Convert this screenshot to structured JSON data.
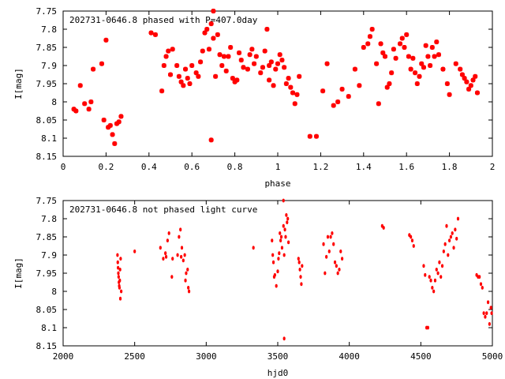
{
  "chart_data": [
    {
      "type": "scatter",
      "title": "202731-0646.8 phased with P=407.0day",
      "xlabel": "phase",
      "ylabel": "I[mag]",
      "xlim": [
        0,
        2
      ],
      "ylim": [
        8.15,
        7.75
      ],
      "y_inverted": true,
      "grid": false,
      "marker_color": "#ff0000",
      "x_ticks": [
        "0",
        "0.2",
        "0.4",
        "0.6",
        "0.8",
        "1",
        "1.2",
        "1.4",
        "1.6",
        "1.8",
        "2"
      ],
      "y_ticks": [
        "7.75",
        "7.8",
        "7.85",
        "7.9",
        "7.95",
        "8",
        "8.05",
        "8.1",
        "8.15"
      ],
      "points": [
        [
          0.05,
          8.02
        ],
        [
          0.06,
          8.025
        ],
        [
          0.08,
          7.955
        ],
        [
          0.1,
          8.005
        ],
        [
          0.12,
          8.02
        ],
        [
          0.13,
          8.0
        ],
        [
          0.14,
          7.91
        ],
        [
          0.18,
          7.895
        ],
        [
          0.19,
          8.05
        ],
        [
          0.2,
          7.83
        ],
        [
          0.21,
          8.07
        ],
        [
          0.22,
          8.065
        ],
        [
          0.23,
          8.09
        ],
        [
          0.24,
          8.115
        ],
        [
          0.25,
          8.06
        ],
        [
          0.26,
          8.055
        ],
        [
          0.27,
          8.04
        ],
        [
          0.41,
          7.81
        ],
        [
          0.43,
          7.815
        ],
        [
          0.46,
          7.97
        ],
        [
          0.47,
          7.9
        ],
        [
          0.48,
          7.875
        ],
        [
          0.49,
          7.86
        ],
        [
          0.5,
          7.925
        ],
        [
          0.51,
          7.855
        ],
        [
          0.53,
          7.9
        ],
        [
          0.54,
          7.93
        ],
        [
          0.55,
          7.945
        ],
        [
          0.56,
          7.955
        ],
        [
          0.57,
          7.91
        ],
        [
          0.58,
          7.935
        ],
        [
          0.59,
          7.95
        ],
        [
          0.6,
          7.9
        ],
        [
          0.62,
          7.92
        ],
        [
          0.63,
          7.93
        ],
        [
          0.64,
          7.89
        ],
        [
          0.65,
          7.86
        ],
        [
          0.66,
          7.81
        ],
        [
          0.67,
          7.8
        ],
        [
          0.68,
          7.855
        ],
        [
          0.69,
          7.785
        ],
        [
          0.7,
          7.75
        ],
        [
          0.7,
          7.825
        ],
        [
          0.71,
          7.93
        ],
        [
          0.72,
          7.815
        ],
        [
          0.73,
          7.87
        ],
        [
          0.74,
          7.9
        ],
        [
          0.75,
          7.875
        ],
        [
          0.76,
          7.915
        ],
        [
          0.77,
          7.875
        ],
        [
          0.78,
          7.85
        ],
        [
          0.79,
          7.935
        ],
        [
          0.8,
          7.945
        ],
        [
          0.81,
          7.94
        ],
        [
          0.82,
          7.865
        ],
        [
          0.83,
          7.885
        ],
        [
          0.84,
          7.905
        ],
        [
          0.86,
          7.91
        ],
        [
          0.87,
          7.87
        ],
        [
          0.88,
          7.855
        ],
        [
          0.89,
          7.895
        ],
        [
          0.9,
          7.875
        ],
        [
          0.92,
          7.92
        ],
        [
          0.93,
          7.905
        ],
        [
          0.94,
          7.86
        ],
        [
          0.95,
          7.8
        ],
        [
          0.96,
          7.94
        ],
        [
          0.96,
          7.9
        ],
        [
          0.97,
          7.89
        ],
        [
          0.98,
          7.955
        ],
        [
          0.99,
          7.91
        ],
        [
          1.0,
          7.895
        ],
        [
          1.01,
          7.87
        ],
        [
          1.02,
          7.885
        ],
        [
          1.03,
          7.905
        ],
        [
          1.04,
          7.95
        ],
        [
          1.05,
          7.935
        ],
        [
          1.06,
          7.96
        ],
        [
          1.07,
          7.975
        ],
        [
          1.08,
          8.005
        ],
        [
          1.09,
          7.98
        ],
        [
          1.1,
          7.93
        ],
        [
          1.15,
          8.095
        ],
        [
          1.18,
          8.095
        ],
        [
          0.69,
          8.105
        ],
        [
          1.21,
          7.97
        ],
        [
          1.23,
          7.895
        ],
        [
          1.26,
          8.01
        ],
        [
          1.28,
          8.0
        ],
        [
          1.3,
          7.965
        ],
        [
          1.33,
          7.985
        ],
        [
          1.36,
          7.91
        ],
        [
          1.38,
          7.955
        ],
        [
          1.4,
          7.85
        ],
        [
          1.42,
          7.84
        ],
        [
          1.43,
          7.82
        ],
        [
          1.44,
          7.8
        ],
        [
          1.46,
          7.895
        ],
        [
          1.47,
          8.005
        ],
        [
          1.48,
          7.84
        ],
        [
          1.49,
          7.865
        ],
        [
          1.5,
          7.875
        ],
        [
          1.51,
          7.96
        ],
        [
          1.52,
          7.95
        ],
        [
          1.53,
          7.92
        ],
        [
          1.54,
          7.855
        ],
        [
          1.55,
          7.88
        ],
        [
          1.57,
          7.84
        ],
        [
          1.58,
          7.825
        ],
        [
          1.59,
          7.85
        ],
        [
          1.6,
          7.815
        ],
        [
          1.61,
          7.875
        ],
        [
          1.62,
          7.91
        ],
        [
          1.63,
          7.88
        ],
        [
          1.64,
          7.92
        ],
        [
          1.65,
          7.95
        ],
        [
          1.66,
          7.93
        ],
        [
          1.67,
          7.895
        ],
        [
          1.68,
          7.905
        ],
        [
          1.69,
          7.845
        ],
        [
          1.7,
          7.875
        ],
        [
          1.71,
          7.9
        ],
        [
          1.72,
          7.85
        ],
        [
          1.73,
          7.875
        ],
        [
          1.74,
          7.835
        ],
        [
          1.75,
          7.87
        ],
        [
          1.77,
          7.91
        ],
        [
          1.79,
          7.95
        ],
        [
          1.8,
          7.98
        ],
        [
          1.83,
          7.895
        ],
        [
          1.85,
          7.91
        ],
        [
          1.86,
          7.925
        ],
        [
          1.87,
          7.935
        ],
        [
          1.88,
          7.945
        ],
        [
          1.89,
          7.965
        ],
        [
          1.9,
          7.955
        ],
        [
          1.91,
          7.94
        ],
        [
          1.92,
          7.93
        ],
        [
          1.93,
          7.975
        ]
      ]
    },
    {
      "type": "scatter",
      "title": "202731-0646.8 not phased light curve",
      "xlabel": "hjd0",
      "ylabel": "I[mag]",
      "xlim": [
        2000,
        5000
      ],
      "ylim": [
        8.15,
        7.75
      ],
      "y_inverted": true,
      "grid": false,
      "marker_color": "#ff0000",
      "x_ticks": [
        "2000",
        "2500",
        "3000",
        "3500",
        "4000",
        "4500",
        "5000"
      ],
      "y_ticks": [
        "7.75",
        "7.8",
        "7.85",
        "7.9",
        "7.95",
        "8",
        "8.05",
        "8.1",
        "8.15"
      ],
      "points": [
        [
          2380,
          7.9
        ],
        [
          2382,
          7.92
        ],
        [
          2384,
          7.935
        ],
        [
          2386,
          7.95
        ],
        [
          2388,
          7.96
        ],
        [
          2390,
          7.975
        ],
        [
          2392,
          7.985
        ],
        [
          2394,
          7.99
        ],
        [
          2396,
          7.97
        ],
        [
          2398,
          7.94
        ],
        [
          2400,
          8.02
        ],
        [
          2402,
          7.91
        ],
        [
          2406,
          8.0
        ],
        [
          2500,
          7.89
        ],
        [
          2680,
          7.88
        ],
        [
          2700,
          7.91
        ],
        [
          2715,
          7.895
        ],
        [
          2720,
          7.905
        ],
        [
          2730,
          7.86
        ],
        [
          2740,
          7.84
        ],
        [
          2760,
          7.96
        ],
        [
          2765,
          7.91
        ],
        [
          2800,
          7.9
        ],
        [
          2810,
          7.85
        ],
        [
          2820,
          7.83
        ],
        [
          2825,
          7.905
        ],
        [
          2830,
          7.88
        ],
        [
          2840,
          7.915
        ],
        [
          2850,
          7.9
        ],
        [
          2855,
          7.97
        ],
        [
          2860,
          7.95
        ],
        [
          2870,
          7.94
        ],
        [
          2875,
          7.99
        ],
        [
          2880,
          8.0
        ],
        [
          3330,
          7.88
        ],
        [
          3460,
          7.86
        ],
        [
          3465,
          7.9
        ],
        [
          3470,
          7.92
        ],
        [
          3475,
          7.96
        ],
        [
          3480,
          7.955
        ],
        [
          3490,
          7.985
        ],
        [
          3500,
          7.945
        ],
        [
          3505,
          7.91
        ],
        [
          3510,
          7.895
        ],
        [
          3515,
          7.84
        ],
        [
          3520,
          7.86
        ],
        [
          3525,
          7.85
        ],
        [
          3530,
          7.88
        ],
        [
          3540,
          7.82
        ],
        [
          3545,
          7.9
        ],
        [
          3550,
          7.83
        ],
        [
          3555,
          7.85
        ],
        [
          3560,
          7.79
        ],
        [
          3565,
          7.81
        ],
        [
          3570,
          7.8
        ],
        [
          3575,
          7.865
        ],
        [
          3540,
          7.75
        ],
        [
          3545,
          8.13
        ],
        [
          3645,
          7.91
        ],
        [
          3650,
          7.92
        ],
        [
          3655,
          7.94
        ],
        [
          3660,
          7.96
        ],
        [
          3665,
          7.98
        ],
        [
          3670,
          7.93
        ],
        [
          3820,
          7.87
        ],
        [
          3830,
          7.95
        ],
        [
          3840,
          7.905
        ],
        [
          3850,
          7.85
        ],
        [
          3860,
          7.89
        ],
        [
          3870,
          7.85
        ],
        [
          3880,
          7.84
        ],
        [
          3890,
          7.87
        ],
        [
          3900,
          7.92
        ],
        [
          3910,
          7.93
        ],
        [
          3920,
          7.95
        ],
        [
          3930,
          7.94
        ],
        [
          3940,
          7.89
        ],
        [
          3950,
          7.91
        ],
        [
          4230,
          7.82
        ],
        [
          4240,
          7.825
        ],
        [
          4420,
          7.845
        ],
        [
          4430,
          7.85
        ],
        [
          4440,
          7.86
        ],
        [
          4450,
          7.875
        ],
        [
          4520,
          7.93
        ],
        [
          4530,
          7.955
        ],
        [
          4540,
          8.1
        ],
        [
          4550,
          8.1
        ],
        [
          4560,
          7.96
        ],
        [
          4570,
          7.97
        ],
        [
          4580,
          7.99
        ],
        [
          4590,
          8.0
        ],
        [
          4600,
          7.97
        ],
        [
          4610,
          7.94
        ],
        [
          4620,
          7.95
        ],
        [
          4630,
          7.92
        ],
        [
          4640,
          7.96
        ],
        [
          4650,
          7.93
        ],
        [
          4660,
          7.89
        ],
        [
          4670,
          7.87
        ],
        [
          4680,
          7.82
        ],
        [
          4690,
          7.9
        ],
        [
          4700,
          7.86
        ],
        [
          4710,
          7.85
        ],
        [
          4720,
          7.84
        ],
        [
          4730,
          7.88
        ],
        [
          4740,
          7.83
        ],
        [
          4750,
          7.855
        ],
        [
          4760,
          7.8
        ],
        [
          4890,
          7.955
        ],
        [
          4900,
          7.96
        ],
        [
          4910,
          7.96
        ],
        [
          4920,
          7.98
        ],
        [
          4930,
          7.99
        ],
        [
          4940,
          8.06
        ],
        [
          4950,
          8.07
        ],
        [
          4960,
          8.06
        ],
        [
          4970,
          8.03
        ],
        [
          4980,
          8.09
        ],
        [
          4990,
          8.045
        ],
        [
          4995,
          8.06
        ]
      ]
    }
  ]
}
